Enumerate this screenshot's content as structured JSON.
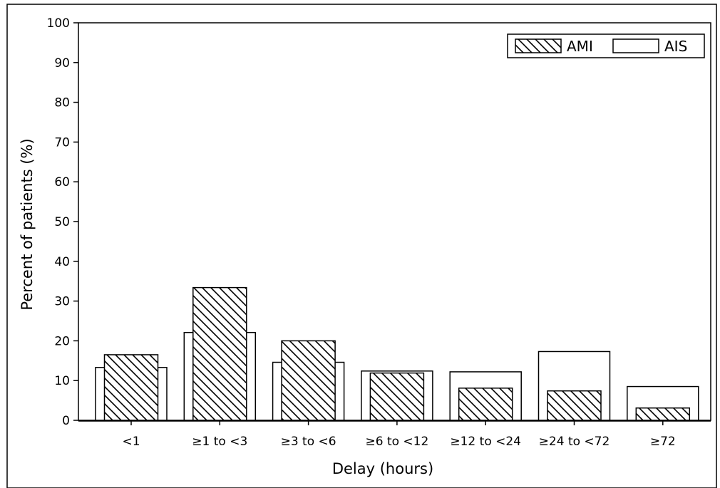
{
  "chart_data": {
    "type": "bar",
    "title": "",
    "xlabel": "Delay (hours)",
    "ylabel": "Percent of patients (%)",
    "ylim": [
      0,
      100
    ],
    "yticks": [
      0,
      10,
      20,
      30,
      40,
      50,
      60,
      70,
      80,
      90,
      100
    ],
    "categories": [
      "<1",
      "≥1 to <3",
      "≥3 to <6",
      "≥6 to <12",
      "≥12 to <24",
      "≥24 to <72",
      "≥72"
    ],
    "series": [
      {
        "name": "AIS",
        "pattern": "none",
        "color": "#ffffff",
        "values": [
          13.3,
          22.1,
          14.6,
          12.4,
          12.2,
          17.3,
          8.5
        ]
      },
      {
        "name": "AMI",
        "pattern": "diagonal-hatch",
        "color": "#ffffff",
        "values": [
          16.5,
          33.4,
          20.0,
          11.9,
          8.1,
          7.4,
          3.1
        ]
      }
    ],
    "legend": {
      "placement": "top-right"
    },
    "grid": false
  }
}
